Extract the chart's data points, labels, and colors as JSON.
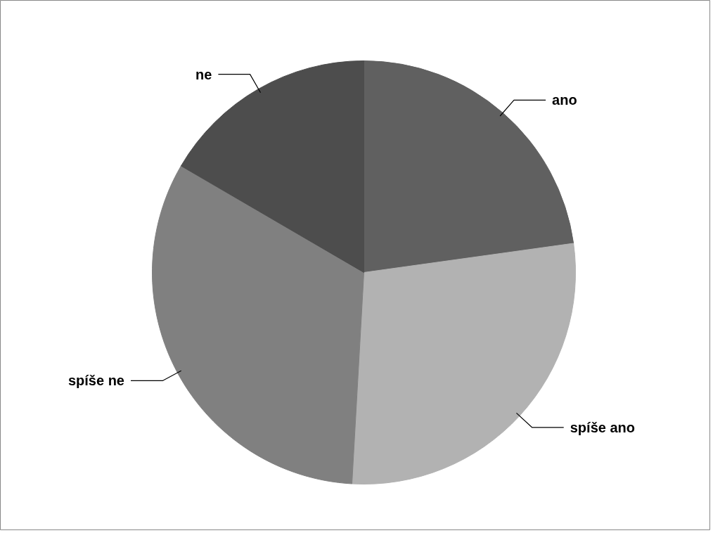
{
  "chart_data": {
    "type": "pie",
    "categories": [
      "ano",
      "spíše ano",
      "spíše ne",
      "ne"
    ],
    "values": [
      22.8,
      28.1,
      32.5,
      16.6
    ],
    "colors": [
      "#606060",
      "#b2b2b2",
      "#808080",
      "#4d4d4d"
    ]
  }
}
